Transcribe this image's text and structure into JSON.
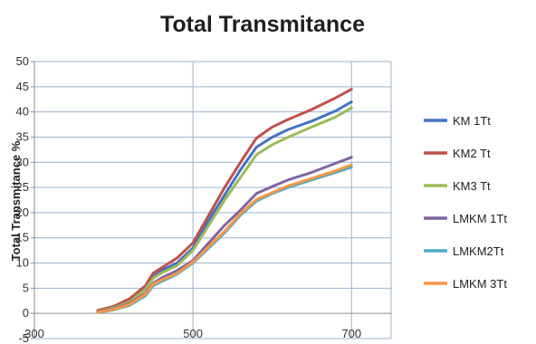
{
  "chart_data": {
    "type": "line",
    "title": "Total Transmitance",
    "xlabel": "",
    "ylabel": "Total Transmitance %",
    "xlim": [
      300,
      750
    ],
    "ylim": [
      -5,
      50
    ],
    "x_ticks": [
      300,
      500,
      700
    ],
    "y_ticks": [
      -5,
      0,
      5,
      10,
      15,
      20,
      25,
      30,
      35,
      40,
      45,
      50
    ],
    "grid": "vertical-and-horizontal",
    "legend_position": "right",
    "x": [
      380,
      400,
      420,
      440,
      450,
      460,
      480,
      500,
      520,
      540,
      560,
      580,
      600,
      620,
      650,
      680,
      700
    ],
    "series": [
      {
        "name": "KM 1Tt",
        "color": "#4472c4",
        "values": [
          0.5,
          1.2,
          2.5,
          5.0,
          7.5,
          8.5,
          10.0,
          13.0,
          18.5,
          23.5,
          28.5,
          33.0,
          35.0,
          36.5,
          38.2,
          40.2,
          42.0
        ]
      },
      {
        "name": "KM2  Tt",
        "color": "#c0504d",
        "values": [
          0.6,
          1.4,
          2.9,
          5.5,
          8.0,
          9.0,
          11.0,
          14.0,
          19.5,
          25.0,
          30.0,
          34.8,
          37.0,
          38.5,
          40.5,
          42.8,
          44.5
        ]
      },
      {
        "name": "KM3  Tt",
        "color": "#9bbb59",
        "values": [
          0.4,
          1.1,
          2.3,
          4.8,
          7.0,
          8.0,
          9.5,
          12.5,
          17.5,
          22.5,
          27.0,
          31.5,
          33.5,
          35.0,
          37.0,
          39.0,
          40.8
        ]
      },
      {
        "name": "LMKM 1Tt",
        "color": "#8064a2",
        "values": [
          0.3,
          0.9,
          2.0,
          4.0,
          6.0,
          7.0,
          8.5,
          10.5,
          14.0,
          17.5,
          20.5,
          23.8,
          25.2,
          26.5,
          28.0,
          29.8,
          31.0
        ]
      },
      {
        "name": "LMKM2Tt",
        "color": "#4bacc6",
        "values": [
          0.2,
          0.7,
          1.6,
          3.5,
          5.5,
          6.3,
          7.8,
          10.0,
          13.0,
          16.0,
          19.5,
          22.3,
          23.8,
          25.0,
          26.5,
          28.0,
          29.0
        ]
      },
      {
        "name": "LMKM 3Tt",
        "color": "#f79646",
        "values": [
          0.2,
          0.8,
          1.8,
          3.8,
          5.8,
          6.6,
          8.0,
          10.2,
          13.3,
          16.3,
          19.8,
          22.6,
          24.0,
          25.3,
          26.8,
          28.3,
          29.5
        ]
      }
    ]
  }
}
